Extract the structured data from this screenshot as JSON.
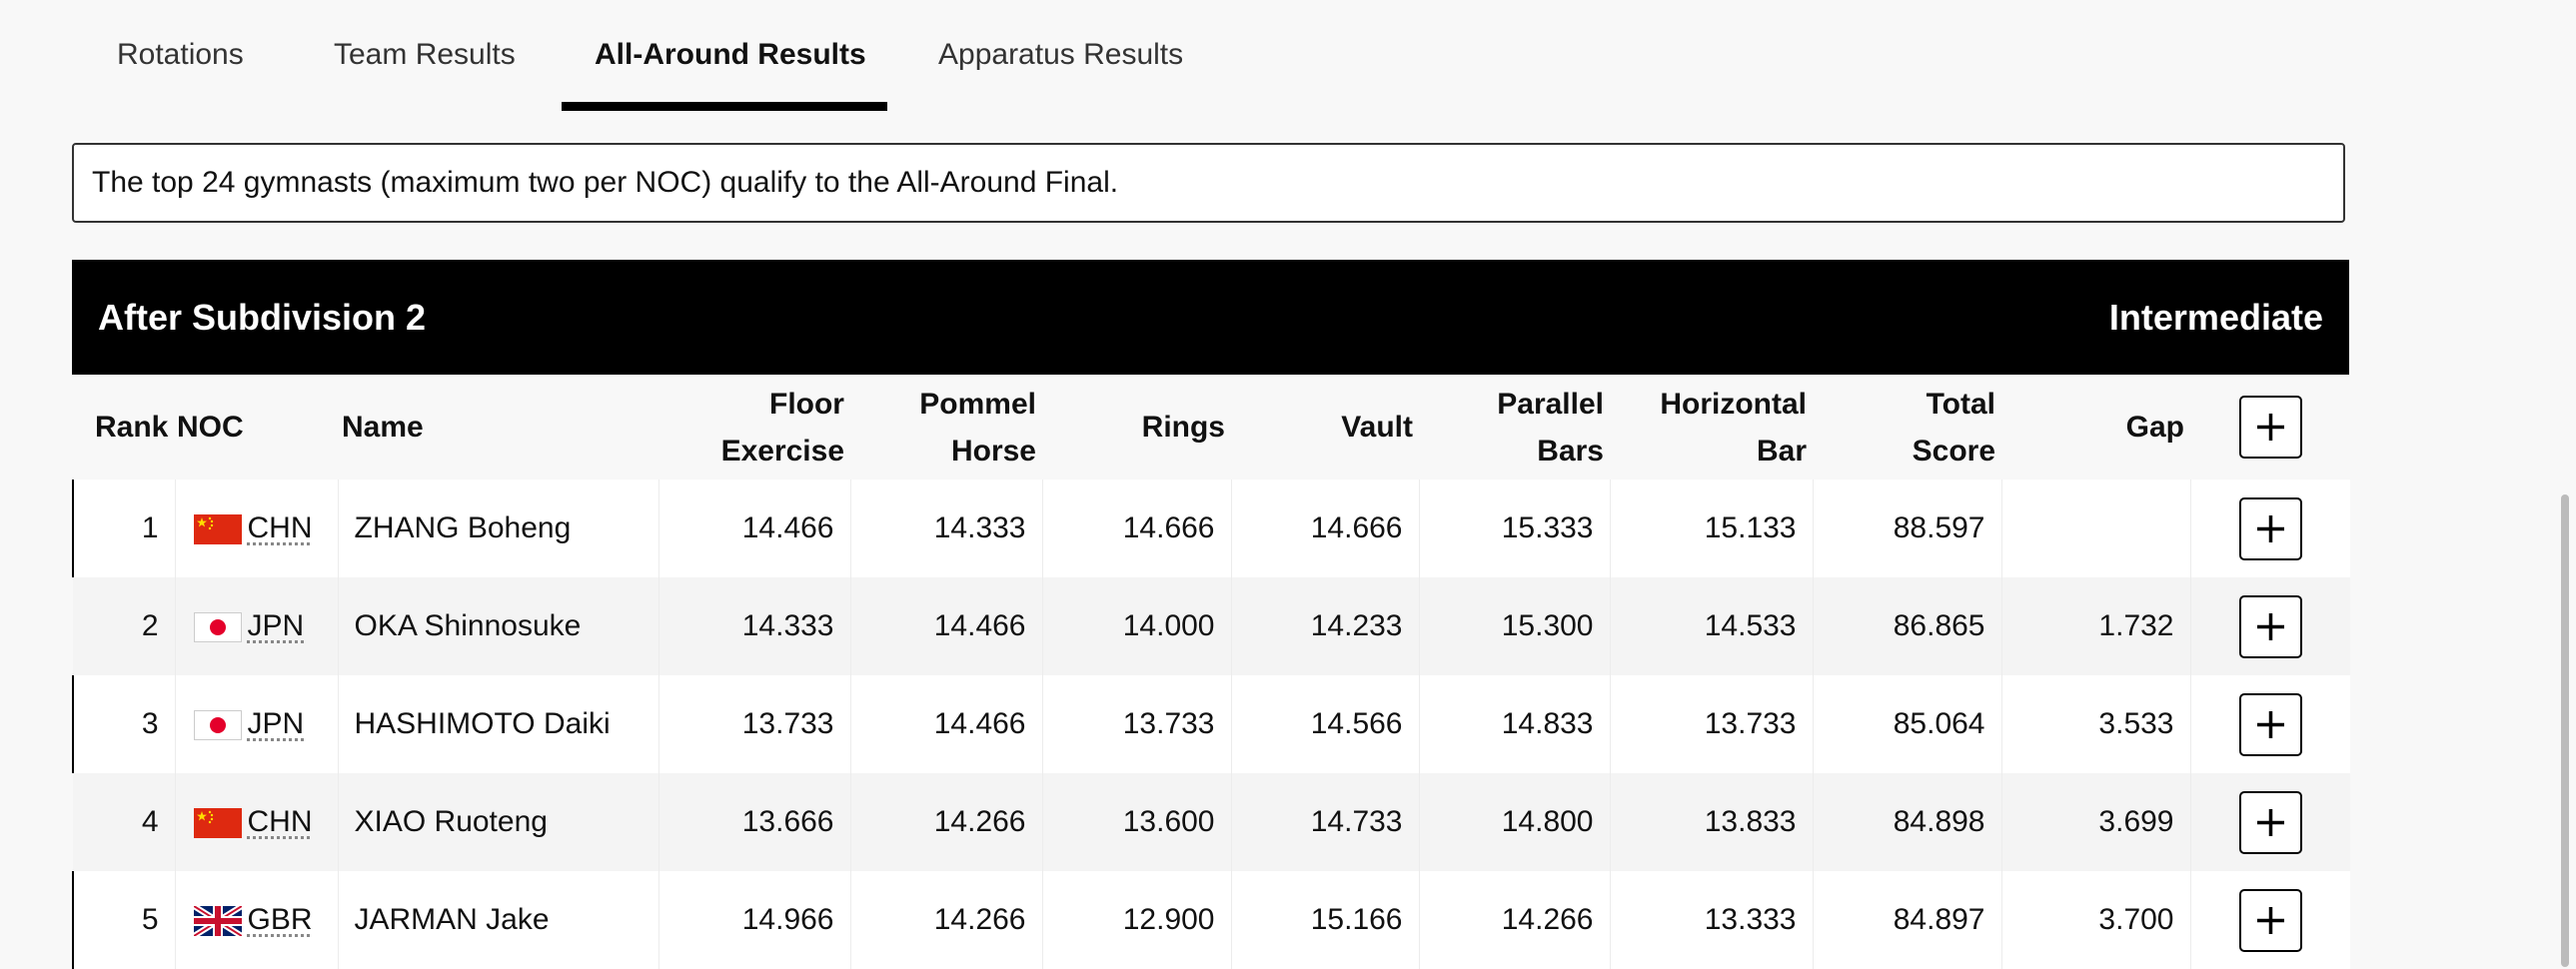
{
  "tabs": [
    "Rotations",
    "Team Results",
    "All-Around Results",
    "Apparatus Results"
  ],
  "notice": "The top 24 gymnasts (maximum two per NOC) qualify to the All-Around Final.",
  "table": {
    "title": "After Subdivision 2",
    "status": "Intermediate",
    "columns": [
      "Rank",
      "NOC",
      "Name",
      "Floor Exercise",
      "Pommel Horse",
      "Rings",
      "Vault",
      "Parallel Bars",
      "Horizontal Bar",
      "Total Score",
      "Gap"
    ],
    "rows": [
      {
        "rank": 1,
        "noc": "CHN",
        "name": "ZHANG Boheng",
        "scores": [
          "14.466",
          "14.333",
          "14.666",
          "14.666",
          "15.333",
          "15.133"
        ],
        "total": "88.597",
        "gap": null
      },
      {
        "rank": 2,
        "noc": "JPN",
        "name": "OKA Shinnosuke",
        "scores": [
          "14.333",
          "14.466",
          "14.000",
          "14.233",
          "15.300",
          "14.533"
        ],
        "total": "86.865",
        "gap": "1.732"
      },
      {
        "rank": 3,
        "noc": "JPN",
        "name": "HASHIMOTO Daiki",
        "scores": [
          "13.733",
          "14.466",
          "13.733",
          "14.566",
          "14.833",
          "13.733"
        ],
        "total": "85.064",
        "gap": "3.533"
      },
      {
        "rank": 4,
        "noc": "CHN",
        "name": "XIAO Ruoteng",
        "scores": [
          "13.666",
          "14.266",
          "13.600",
          "14.733",
          "14.800",
          "13.833"
        ],
        "total": "84.898",
        "gap": "3.699"
      },
      {
        "rank": 5,
        "noc": "GBR",
        "name": "JARMAN Jake",
        "scores": [
          "14.966",
          "14.266",
          "12.900",
          "15.166",
          "14.266",
          "13.333"
        ],
        "total": "84.897",
        "gap": "3.700"
      }
    ]
  }
}
